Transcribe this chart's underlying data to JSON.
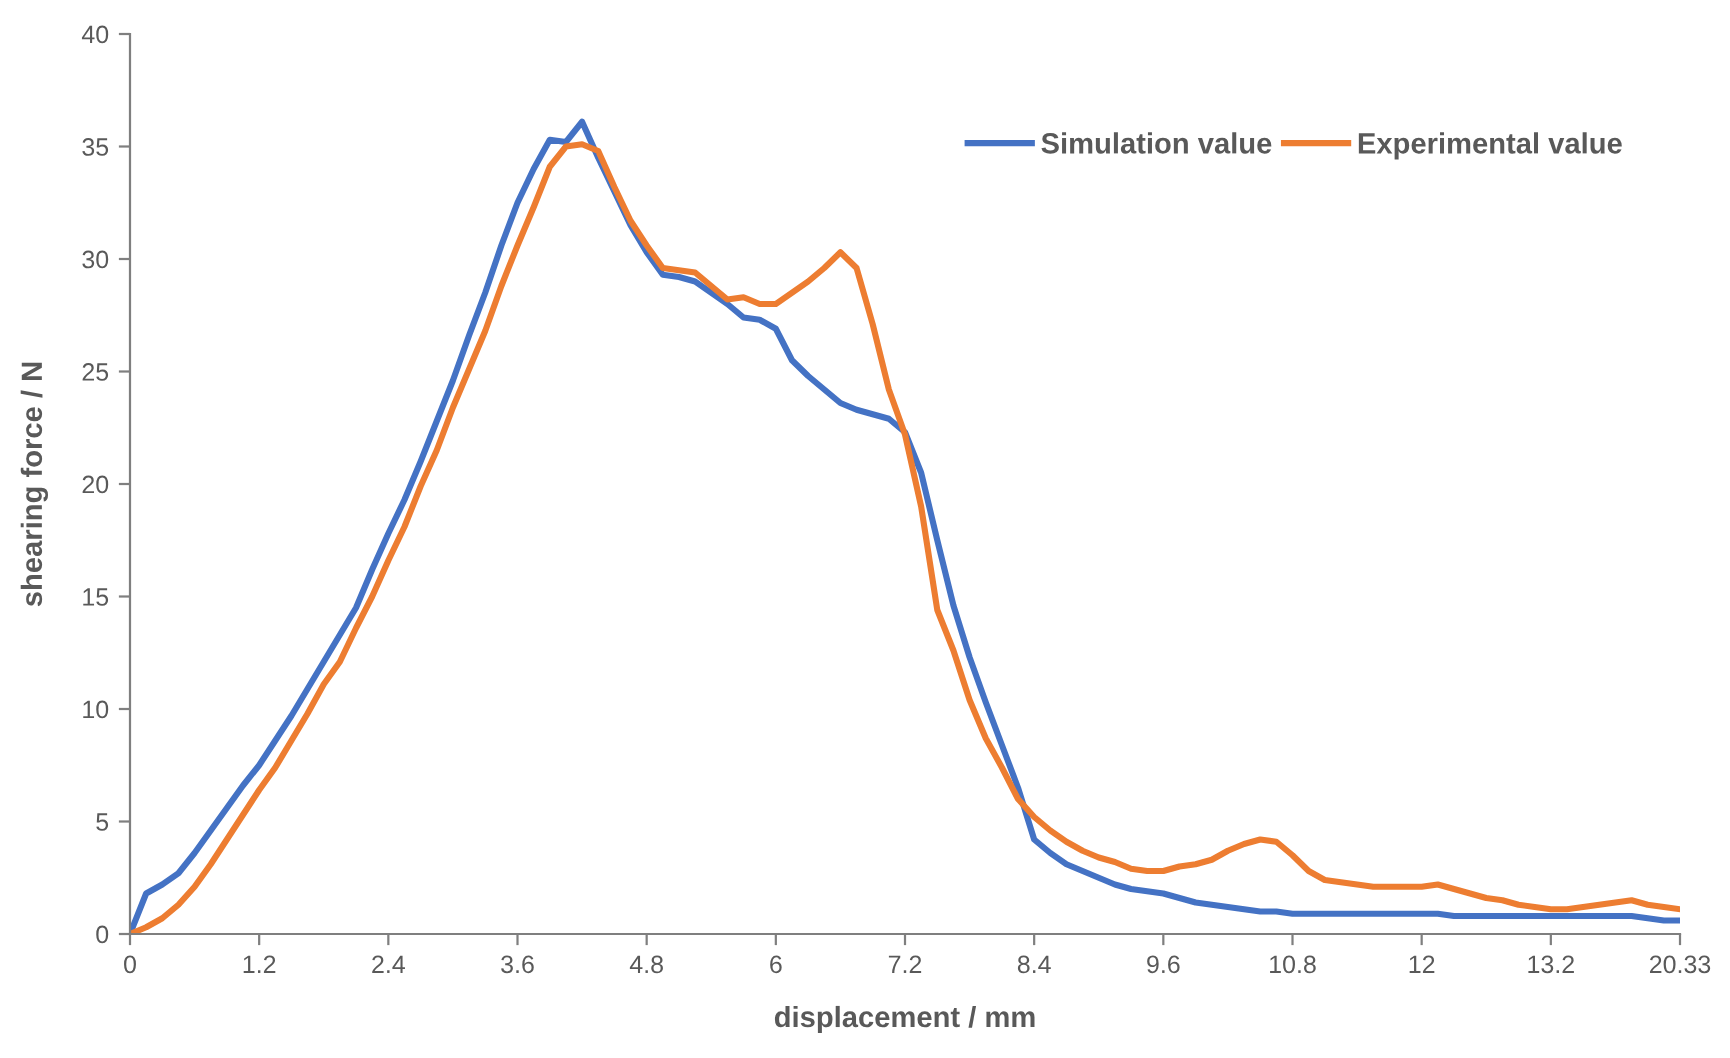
{
  "chart_data": {
    "type": "line",
    "xlabel": "displacement / mm",
    "ylabel": "shearing force / N",
    "categories": [
      "0",
      null,
      null,
      null,
      null,
      null,
      null,
      null,
      "1.2",
      null,
      null,
      null,
      null,
      null,
      null,
      null,
      "2.4",
      null,
      null,
      null,
      null,
      null,
      null,
      null,
      "3.6",
      null,
      null,
      null,
      null,
      null,
      null,
      null,
      "4.8",
      null,
      null,
      null,
      null,
      null,
      null,
      null,
      "6",
      null,
      null,
      null,
      null,
      null,
      null,
      null,
      "7.2",
      null,
      null,
      null,
      null,
      null,
      null,
      null,
      "8.4",
      null,
      null,
      null,
      null,
      null,
      null,
      null,
      "9.6",
      null,
      null,
      null,
      null,
      null,
      null,
      null,
      "10.8",
      null,
      null,
      null,
      null,
      null,
      null,
      null,
      "12",
      null,
      null,
      null,
      null,
      null,
      null,
      null,
      "13.2",
      null,
      null,
      null,
      null,
      null,
      null,
      null,
      "20.33"
    ],
    "series": [
      {
        "name": "Simulation value",
        "color": "#4472c4",
        "values": [
          0,
          1.8,
          2.2,
          2.7,
          3.6,
          4.6,
          5.6,
          6.6,
          7.5,
          8.6,
          9.7,
          10.9,
          12.1,
          13.3,
          14.5,
          16.2,
          17.8,
          19.3,
          21.0,
          22.8,
          24.6,
          26.6,
          28.5,
          30.6,
          32.5,
          34.0,
          35.3,
          35.2,
          36.1,
          34.5,
          33.0,
          31.5,
          30.3,
          29.3,
          29.2,
          29.0,
          28.5,
          28.0,
          27.4,
          27.3,
          26.9,
          25.5,
          24.8,
          24.2,
          23.6,
          23.3,
          23.1,
          22.9,
          22.3,
          20.5,
          17.5,
          14.6,
          12.3,
          10.3,
          8.4,
          6.5,
          4.2,
          3.6,
          3.1,
          2.8,
          2.5,
          2.2,
          2.0,
          1.9,
          1.8,
          1.6,
          1.4,
          1.3,
          1.2,
          1.1,
          1.0,
          1.0,
          0.9,
          0.9,
          0.9,
          0.9,
          0.9,
          0.9,
          0.9,
          0.9,
          0.9,
          0.9,
          0.8,
          0.8,
          0.8,
          0.8,
          0.8,
          0.8,
          0.8,
          0.8,
          0.8,
          0.8,
          0.8,
          0.8,
          0.7,
          0.6,
          0.6
        ]
      },
      {
        "name": "Experimental value",
        "color": "#ed7d31",
        "values": [
          0,
          0.3,
          0.7,
          1.3,
          2.1,
          3.1,
          4.2,
          5.3,
          6.4,
          7.4,
          8.6,
          9.8,
          11.1,
          12.1,
          13.6,
          15.0,
          16.6,
          18.1,
          19.9,
          21.5,
          23.4,
          25.1,
          26.8,
          28.8,
          30.6,
          32.3,
          34.1,
          35.0,
          35.1,
          34.8,
          33.2,
          31.7,
          30.6,
          29.6,
          29.5,
          29.4,
          28.8,
          28.2,
          28.3,
          28.0,
          28.0,
          28.5,
          29.0,
          29.6,
          30.3,
          29.6,
          27.1,
          24.2,
          22.2,
          19.0,
          14.4,
          12.6,
          10.4,
          8.7,
          7.4,
          6.0,
          5.2,
          4.6,
          4.1,
          3.7,
          3.4,
          3.2,
          2.9,
          2.8,
          2.8,
          3.0,
          3.1,
          3.3,
          3.7,
          4.0,
          4.2,
          4.1,
          3.5,
          2.8,
          2.4,
          2.3,
          2.2,
          2.1,
          2.1,
          2.1,
          2.1,
          2.2,
          2.0,
          1.8,
          1.6,
          1.5,
          1.3,
          1.2,
          1.1,
          1.1,
          1.2,
          1.3,
          1.4,
          1.5,
          1.3,
          1.2,
          1.1
        ]
      }
    ],
    "ylim": [
      0,
      40
    ],
    "yticks": [
      0,
      5,
      10,
      15,
      20,
      25,
      30,
      35,
      40
    ],
    "grid": false,
    "legend": "top right",
    "marker": "none",
    "line_style": "solid"
  }
}
